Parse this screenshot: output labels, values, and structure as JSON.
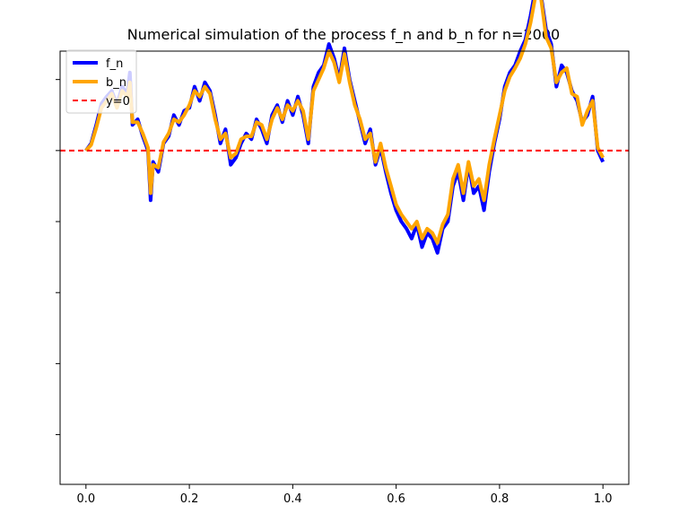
{
  "chart_data": {
    "type": "line",
    "title": "Numerical simulation of the process f_n and b_n for n=2000",
    "xlabel": "",
    "ylabel": "",
    "xlim": [
      -0.05,
      1.05
    ],
    "ylim": [
      -2.35,
      0.7
    ],
    "x_ticks": [
      0.0,
      0.2,
      0.4,
      0.6,
      0.8,
      1.0
    ],
    "x_tick_labels": [
      "0.0",
      "0.2",
      "0.4",
      "0.6",
      "0.8",
      "1.0"
    ],
    "y_ticks": [
      1.0,
      0.5,
      0.0,
      -0.5,
      -1.0,
      -1.5,
      -2.0,
      -2.5
    ],
    "y_tick_labels_shown": false,
    "grid": false,
    "legend_position": "top-left",
    "reference_line": {
      "name": "y=0",
      "y": 0,
      "color": "#ff0000",
      "style": "dashed"
    },
    "series": [
      {
        "name": "f_n",
        "color": "#0000ff",
        "x": [
          0.0,
          0.01,
          0.02,
          0.03,
          0.04,
          0.05,
          0.06,
          0.07,
          0.08,
          0.085,
          0.09,
          0.1,
          0.11,
          0.12,
          0.125,
          0.13,
          0.14,
          0.15,
          0.16,
          0.17,
          0.18,
          0.19,
          0.2,
          0.21,
          0.22,
          0.23,
          0.24,
          0.25,
          0.26,
          0.27,
          0.28,
          0.29,
          0.3,
          0.31,
          0.32,
          0.33,
          0.34,
          0.35,
          0.36,
          0.37,
          0.38,
          0.39,
          0.4,
          0.41,
          0.42,
          0.43,
          0.44,
          0.45,
          0.46,
          0.47,
          0.48,
          0.49,
          0.5,
          0.51,
          0.52,
          0.53,
          0.54,
          0.55,
          0.56,
          0.57,
          0.58,
          0.59,
          0.6,
          0.61,
          0.62,
          0.63,
          0.64,
          0.65,
          0.66,
          0.67,
          0.68,
          0.69,
          0.7,
          0.71,
          0.72,
          0.73,
          0.74,
          0.75,
          0.76,
          0.77,
          0.78,
          0.79,
          0.8,
          0.81,
          0.82,
          0.83,
          0.84,
          0.85,
          0.86,
          0.87,
          0.88,
          0.89,
          0.9,
          0.91,
          0.92,
          0.93,
          0.94,
          0.95,
          0.96,
          0.97,
          0.98,
          0.99,
          1.0
        ],
        "y": [
          0.0,
          0.05,
          0.18,
          0.33,
          0.38,
          0.42,
          0.32,
          0.45,
          0.4,
          0.55,
          0.18,
          0.22,
          0.1,
          0.0,
          -0.35,
          -0.08,
          -0.15,
          0.05,
          0.1,
          0.25,
          0.18,
          0.28,
          0.3,
          0.45,
          0.35,
          0.48,
          0.42,
          0.25,
          0.05,
          0.15,
          -0.1,
          -0.05,
          0.05,
          0.12,
          0.08,
          0.22,
          0.15,
          0.05,
          0.25,
          0.32,
          0.2,
          0.35,
          0.25,
          0.38,
          0.25,
          0.05,
          0.45,
          0.55,
          0.6,
          0.75,
          0.65,
          0.5,
          0.72,
          0.5,
          0.35,
          0.2,
          0.05,
          0.15,
          -0.1,
          0.02,
          -0.15,
          -0.3,
          -0.42,
          -0.5,
          -0.55,
          -0.62,
          -0.52,
          -0.68,
          -0.58,
          -0.62,
          -0.72,
          -0.55,
          -0.5,
          -0.25,
          -0.15,
          -0.35,
          -0.1,
          -0.3,
          -0.25,
          -0.42,
          -0.15,
          0.05,
          0.22,
          0.45,
          0.55,
          0.6,
          0.7,
          0.78,
          0.95,
          1.15,
          1.1,
          0.85,
          0.75,
          0.45,
          0.6,
          0.55,
          0.42,
          0.35,
          0.2,
          0.25,
          0.38,
          0.0,
          -0.08
        ]
      },
      {
        "name": "b_n",
        "color": "#ffa500",
        "x": [
          0.0,
          0.01,
          0.02,
          0.03,
          0.04,
          0.05,
          0.06,
          0.07,
          0.08,
          0.085,
          0.09,
          0.1,
          0.11,
          0.12,
          0.125,
          0.13,
          0.14,
          0.15,
          0.16,
          0.17,
          0.18,
          0.19,
          0.2,
          0.21,
          0.22,
          0.23,
          0.24,
          0.25,
          0.26,
          0.27,
          0.28,
          0.29,
          0.3,
          0.31,
          0.32,
          0.33,
          0.34,
          0.35,
          0.36,
          0.37,
          0.38,
          0.39,
          0.4,
          0.41,
          0.42,
          0.43,
          0.44,
          0.45,
          0.46,
          0.47,
          0.48,
          0.49,
          0.5,
          0.51,
          0.52,
          0.53,
          0.54,
          0.55,
          0.56,
          0.57,
          0.58,
          0.59,
          0.6,
          0.61,
          0.62,
          0.63,
          0.64,
          0.65,
          0.66,
          0.67,
          0.68,
          0.69,
          0.7,
          0.71,
          0.72,
          0.73,
          0.74,
          0.75,
          0.76,
          0.77,
          0.78,
          0.79,
          0.8,
          0.81,
          0.82,
          0.83,
          0.84,
          0.85,
          0.86,
          0.87,
          0.88,
          0.89,
          0.9,
          0.91,
          0.92,
          0.93,
          0.94,
          0.95,
          0.96,
          0.97,
          0.98,
          0.99,
          1.0
        ],
        "y": [
          0.0,
          0.04,
          0.16,
          0.3,
          0.35,
          0.4,
          0.3,
          0.42,
          0.38,
          0.48,
          0.2,
          0.2,
          0.12,
          0.02,
          -0.3,
          -0.1,
          -0.12,
          0.06,
          0.12,
          0.22,
          0.2,
          0.25,
          0.32,
          0.42,
          0.38,
          0.45,
          0.4,
          0.22,
          0.08,
          0.12,
          -0.05,
          -0.02,
          0.08,
          0.1,
          0.1,
          0.2,
          0.18,
          0.08,
          0.22,
          0.3,
          0.22,
          0.32,
          0.28,
          0.35,
          0.28,
          0.08,
          0.42,
          0.5,
          0.58,
          0.7,
          0.62,
          0.48,
          0.68,
          0.48,
          0.32,
          0.22,
          0.08,
          0.12,
          -0.08,
          0.05,
          -0.12,
          -0.25,
          -0.38,
          -0.45,
          -0.5,
          -0.55,
          -0.5,
          -0.62,
          -0.55,
          -0.58,
          -0.65,
          -0.52,
          -0.45,
          -0.2,
          -0.1,
          -0.3,
          -0.08,
          -0.25,
          -0.2,
          -0.35,
          -0.1,
          0.08,
          0.25,
          0.42,
          0.52,
          0.58,
          0.65,
          0.75,
          0.9,
          1.1,
          1.08,
          0.8,
          0.72,
          0.48,
          0.55,
          0.58,
          0.4,
          0.38,
          0.18,
          0.28,
          0.35,
          0.02,
          -0.05
        ]
      }
    ]
  }
}
